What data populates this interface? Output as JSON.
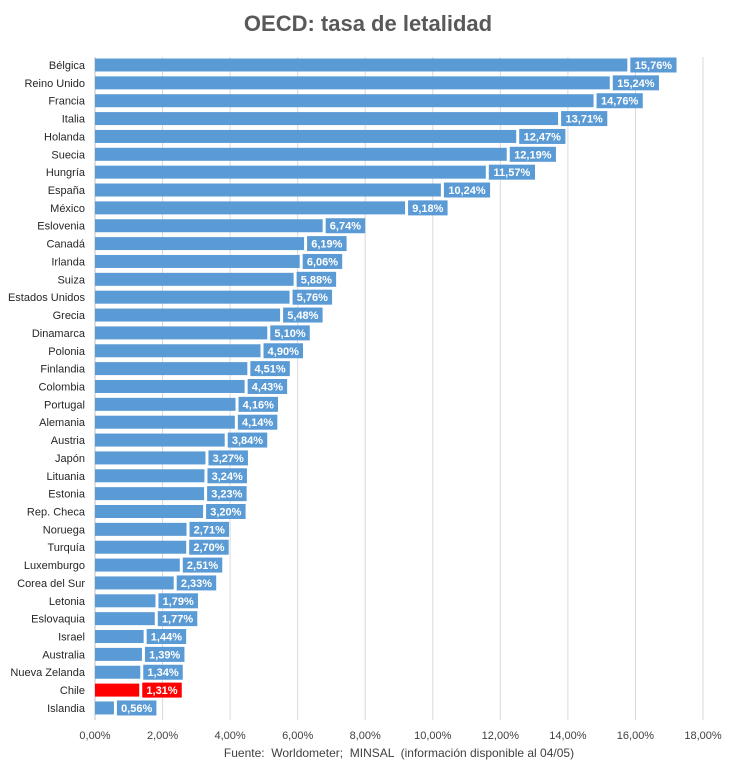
{
  "chart_data": {
    "type": "bar",
    "orientation": "horizontal",
    "title": "OECD: tasa de letalidad",
    "footnote": "Fuente:  Worldometer;  MINSAL  (información disponible al 04/05)",
    "xlim": [
      0,
      18
    ],
    "x_ticks": [
      "0,00%",
      "2,00%",
      "4,00%",
      "6,00%",
      "8,00%",
      "10,00%",
      "12,00%",
      "14,00%",
      "16,00%",
      "18,00%"
    ],
    "grid": "vertical",
    "colors": {
      "default": "#5b9bd5",
      "highlight": "#ff0000"
    },
    "highlight": "Chile",
    "categories": [
      "Bélgica",
      "Reino Unido",
      "Francia",
      "Italia",
      "Holanda",
      "Suecia",
      "Hungría",
      "España",
      "México",
      "Eslovenia",
      "Canadá",
      "Irlanda",
      "Suiza",
      "Estados Unidos",
      "Grecia",
      "Dinamarca",
      "Polonia",
      "Finlandia",
      "Colombia",
      "Portugal",
      "Alemania",
      "Austria",
      "Japón",
      "Lituania",
      "Estonia",
      "Rep. Checa",
      "Noruega",
      "Turquía",
      "Luxemburgo",
      "Corea del Sur",
      "Letonia",
      "Eslovaquia",
      "Israel",
      "Australia",
      "Nueva Zelanda",
      "Chile",
      "Islandia"
    ],
    "values": [
      15.76,
      15.24,
      14.76,
      13.71,
      12.47,
      12.19,
      11.57,
      10.24,
      9.18,
      6.74,
      6.19,
      6.06,
      5.88,
      5.76,
      5.48,
      5.1,
      4.9,
      4.51,
      4.43,
      4.16,
      4.14,
      3.84,
      3.27,
      3.24,
      3.23,
      3.2,
      2.71,
      2.7,
      2.51,
      2.33,
      1.79,
      1.77,
      1.44,
      1.39,
      1.34,
      1.31,
      0.56
    ],
    "labels": [
      "15,76%",
      "15,24%",
      "14,76%",
      "13,71%",
      "12,47%",
      "12,19%",
      "11,57%",
      "10,24%",
      "9,18%",
      "6,74%",
      "6,19%",
      "6,06%",
      "5,88%",
      "5,76%",
      "5,48%",
      "5,10%",
      "4,90%",
      "4,51%",
      "4,43%",
      "4,16%",
      "4,14%",
      "3,84%",
      "3,27%",
      "3,24%",
      "3,23%",
      "3,20%",
      "2,71%",
      "2,70%",
      "2,51%",
      "2,33%",
      "1,79%",
      "1,77%",
      "1,44%",
      "1,39%",
      "1,34%",
      "1,31%",
      "0,56%"
    ]
  }
}
